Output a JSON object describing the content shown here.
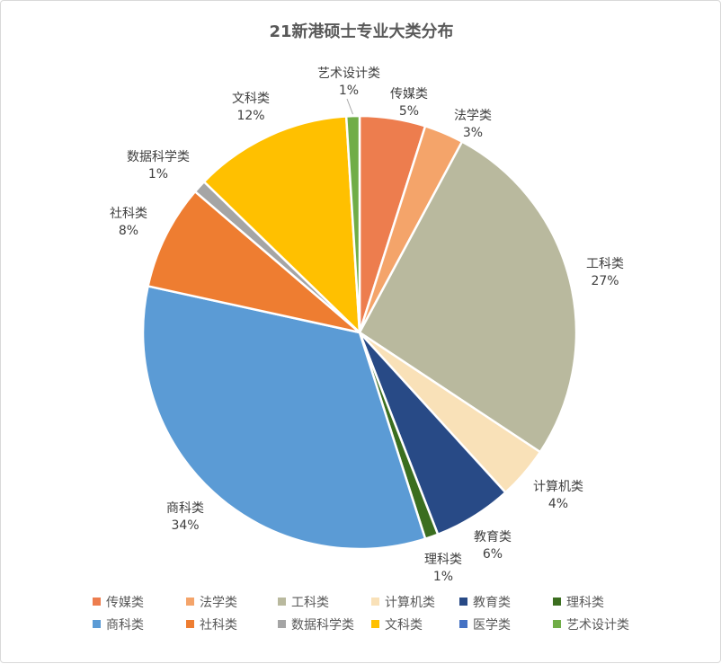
{
  "chart_data": {
    "type": "pie",
    "title": "21新港硕士专业大类分布",
    "slices": [
      {
        "name": "传媒类",
        "value": 5,
        "label": "5%",
        "color": "#ED7D4E"
      },
      {
        "name": "法学类",
        "value": 3,
        "label": "3%",
        "color": "#F4A46A"
      },
      {
        "name": "工科类",
        "value": 27,
        "label": "27%",
        "color": "#B9B99E"
      },
      {
        "name": "计算机类",
        "value": 4,
        "label": "4%",
        "color": "#F9E1B8"
      },
      {
        "name": "教育类",
        "value": 6,
        "label": "6%",
        "color": "#284A86"
      },
      {
        "name": "理科类",
        "value": 1,
        "label": "1%",
        "color": "#3B6E1F"
      },
      {
        "name": "商科类",
        "value": 34,
        "label": "34%",
        "color": "#5B9BD5"
      },
      {
        "name": "社科类",
        "value": 8,
        "label": "8%",
        "color": "#EE7D31"
      },
      {
        "name": "数据科学类",
        "value": 1,
        "label": "1%",
        "color": "#A5A5A5"
      },
      {
        "name": "文科类",
        "value": 12,
        "label": "12%",
        "color": "#FFC000"
      },
      {
        "name": "医学类",
        "value": 0,
        "label": "",
        "color": "#4472C4"
      },
      {
        "name": "艺术设计类",
        "value": 1,
        "label": "1%",
        "color": "#70AD47"
      }
    ],
    "legend_position": "bottom",
    "start_angle_deg": 0,
    "direction": "clockwise"
  }
}
